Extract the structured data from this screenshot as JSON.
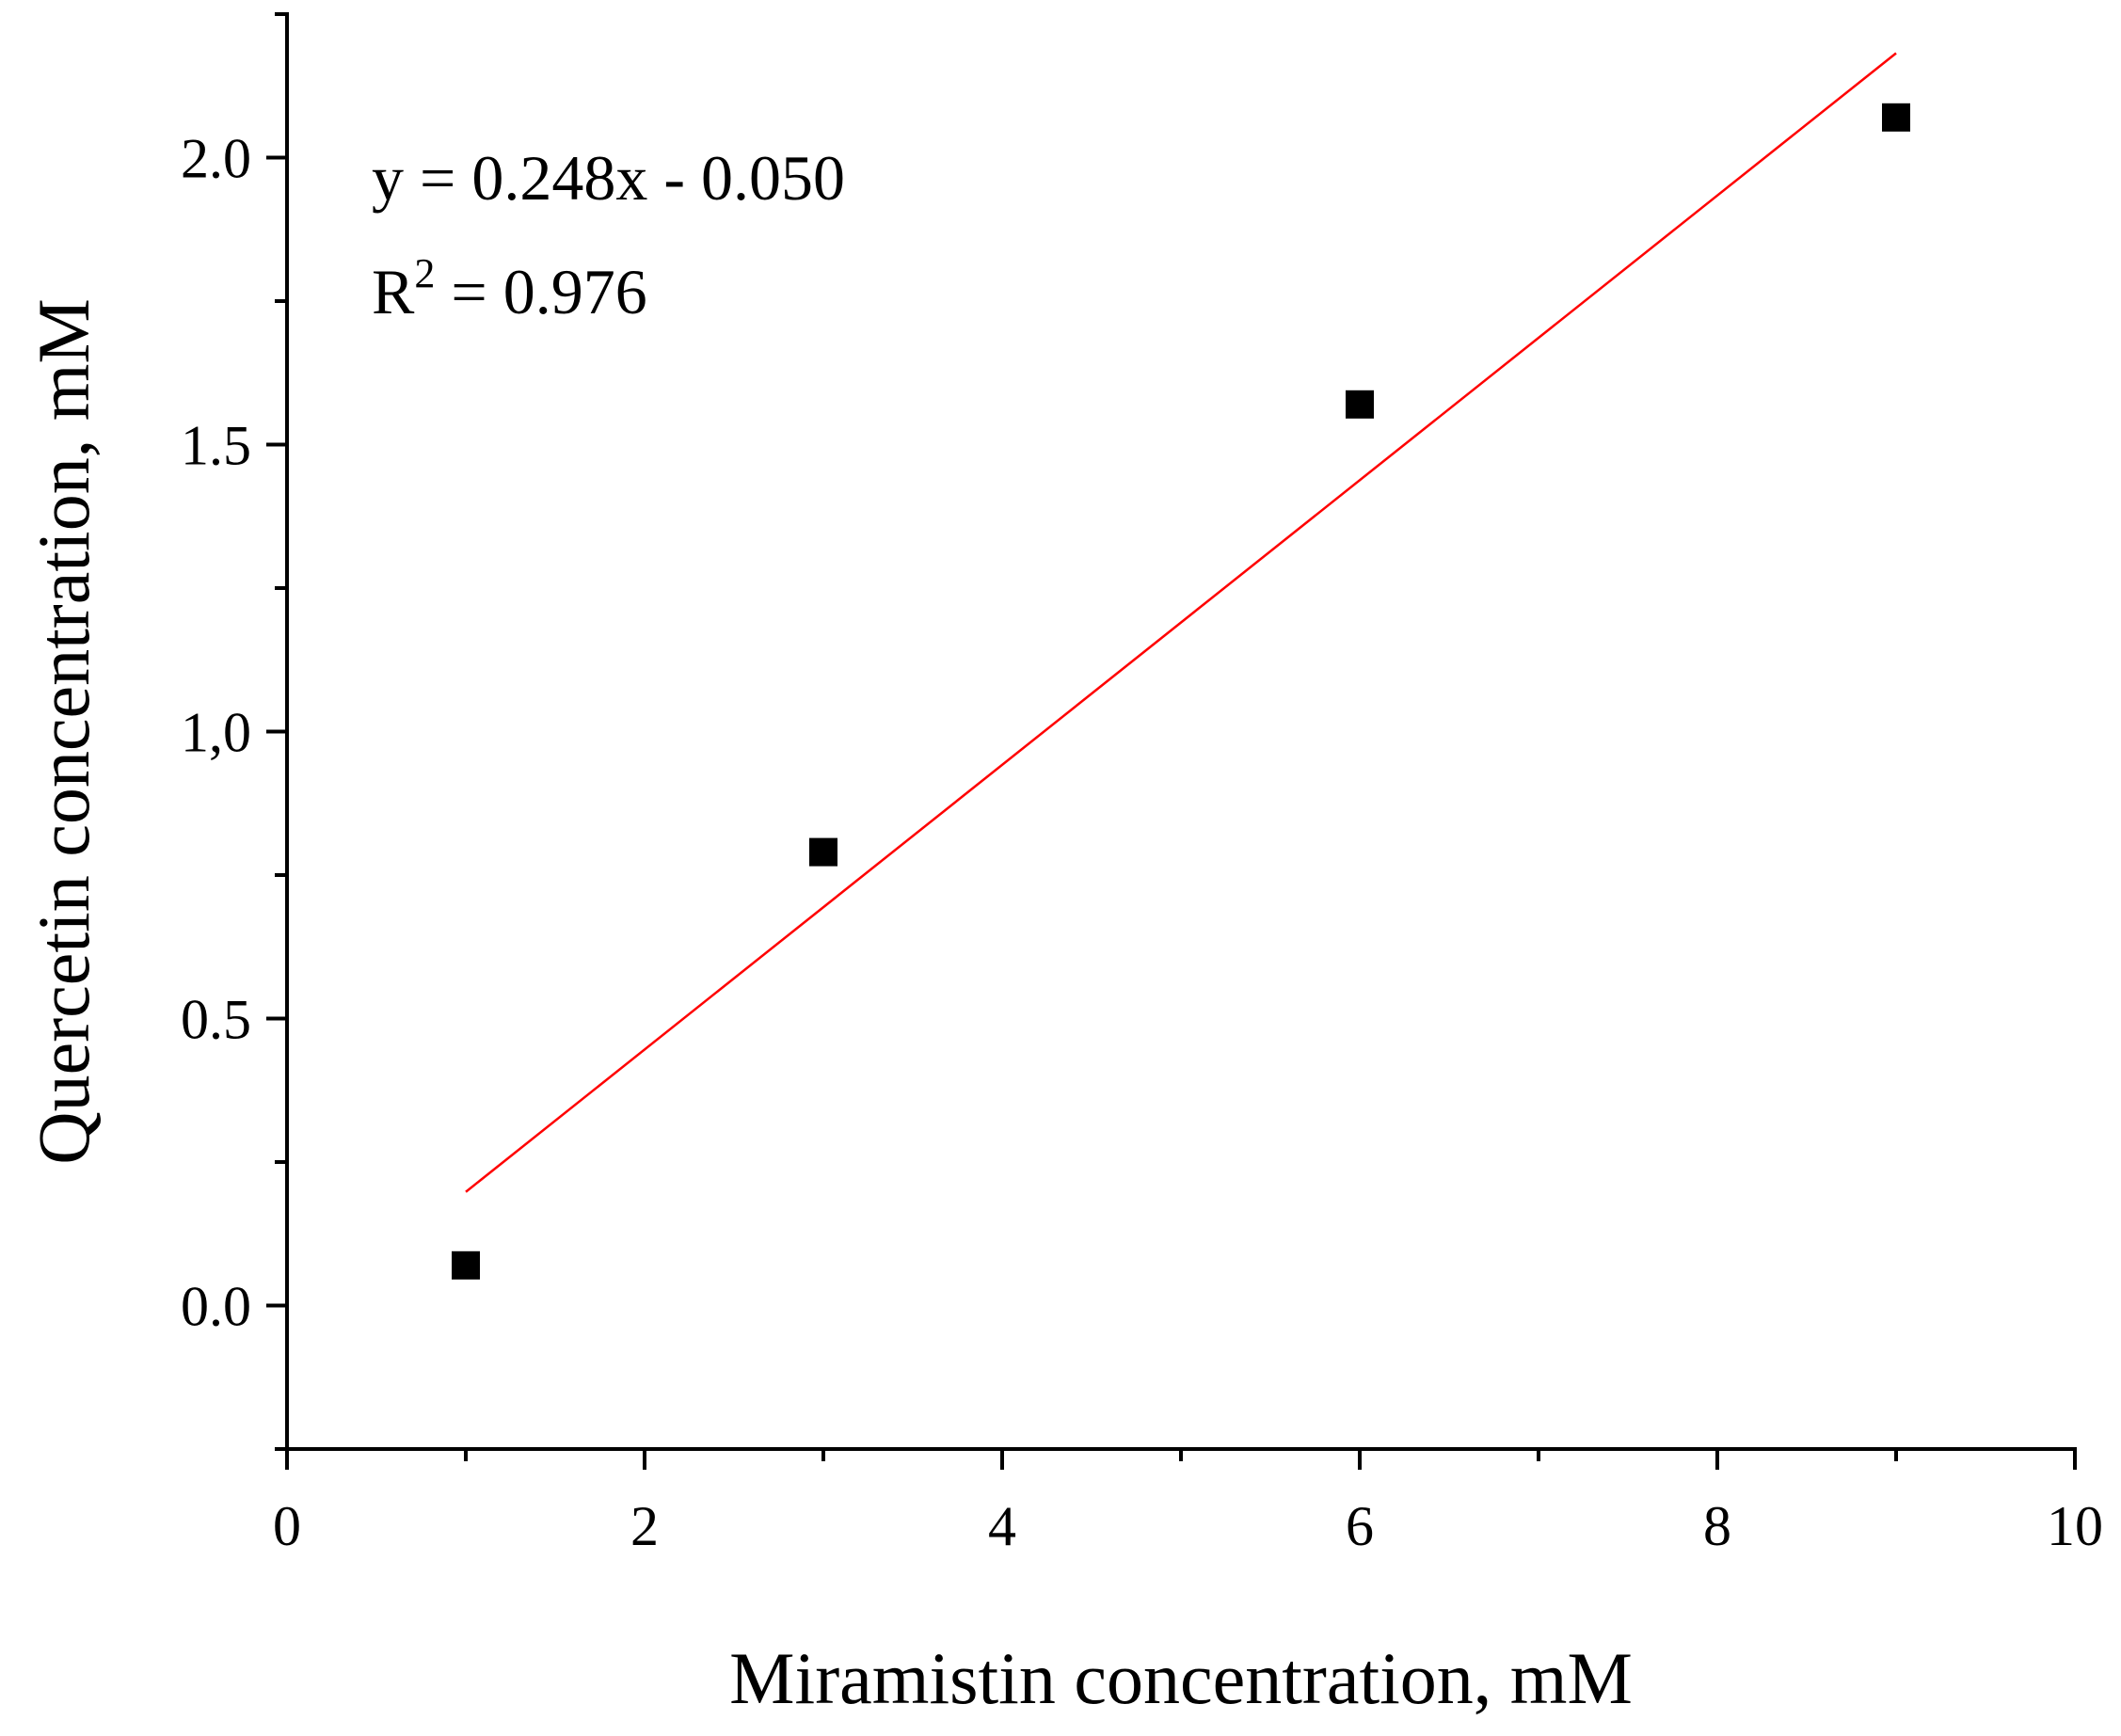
{
  "chart_data": {
    "type": "scatter",
    "title": "",
    "xlabel": "Miramistin concentration, mM",
    "ylabel": "Quercetin concentration, mM",
    "xlim": [
      0,
      10
    ],
    "ylim": [
      -0.25,
      2.25
    ],
    "grid": false,
    "x_ticks": [
      {
        "value": 0,
        "label": "0"
      },
      {
        "value": 2,
        "label": "2"
      },
      {
        "value": 4,
        "label": "4"
      },
      {
        "value": 6,
        "label": "6"
      },
      {
        "value": 8,
        "label": "8"
      },
      {
        "value": 10,
        "label": "10"
      }
    ],
    "x_minor_ticks": [
      1,
      3,
      5,
      7,
      9
    ],
    "y_ticks": [
      {
        "value": 0.0,
        "label": "0.0"
      },
      {
        "value": 0.5,
        "label": "0.5"
      },
      {
        "value": 1.0,
        "label": "1,0"
      },
      {
        "value": 1.5,
        "label": "1.5"
      },
      {
        "value": 2.0,
        "label": "2.0"
      }
    ],
    "y_minor_ticks": [
      -0.25,
      0.25,
      0.75,
      1.25,
      1.75,
      2.25
    ],
    "series": [
      {
        "name": "data",
        "marker": "square",
        "color": "#000000",
        "x": [
          1,
          3,
          6,
          9
        ],
        "y": [
          0.07,
          0.79,
          1.57,
          2.07
        ]
      }
    ],
    "fit": {
      "type": "linear",
      "color": "#ff0000",
      "slope": 0.248,
      "intercept": -0.05,
      "x_range": [
        1,
        9
      ]
    },
    "annotations": {
      "equation": "y = 0.248x - 0.050",
      "r2_prefix": "R",
      "r2_sup": "2",
      "r2_suffix": " = 0.976"
    }
  }
}
